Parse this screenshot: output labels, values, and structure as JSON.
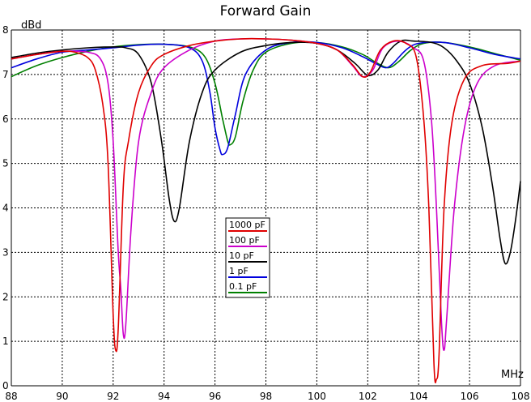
{
  "chart_data": {
    "type": "line",
    "title": "Forward Gain",
    "ylabel": "dBd",
    "xlabel": "MHz",
    "xlim": [
      88,
      108
    ],
    "ylim": [
      0,
      8
    ],
    "xticks": [
      "88",
      "90",
      "92",
      "94",
      "96",
      "98",
      "100",
      "102",
      "104",
      "106",
      "108"
    ],
    "yticks": [
      "0",
      "1",
      "2",
      "3",
      "4",
      "5",
      "6",
      "7",
      "8"
    ],
    "grid": true,
    "legend_placement": "center-left",
    "series": [
      {
        "name": "1000 pF",
        "color": "#e00000",
        "points": [
          [
            88,
            7.35
          ],
          [
            89,
            7.45
          ],
          [
            90,
            7.52
          ],
          [
            90.5,
            7.5
          ],
          [
            91,
            7.38
          ],
          [
            91.3,
            7.1
          ],
          [
            91.6,
            6.3
          ],
          [
            91.8,
            5.0
          ],
          [
            92.0,
            1.6
          ],
          [
            92.1,
            0.8
          ],
          [
            92.2,
            1.3
          ],
          [
            92.4,
            4.5
          ],
          [
            92.6,
            5.5
          ],
          [
            93,
            6.6
          ],
          [
            93.5,
            7.2
          ],
          [
            94,
            7.45
          ],
          [
            95,
            7.65
          ],
          [
            96,
            7.75
          ],
          [
            97,
            7.8
          ],
          [
            98,
            7.8
          ],
          [
            99,
            7.77
          ],
          [
            100,
            7.7
          ],
          [
            100.8,
            7.55
          ],
          [
            101.4,
            7.22
          ],
          [
            101.8,
            6.95
          ],
          [
            102.1,
            7.05
          ],
          [
            102.5,
            7.55
          ],
          [
            103,
            7.75
          ],
          [
            103.5,
            7.7
          ],
          [
            103.9,
            7.4
          ],
          [
            104.2,
            6.0
          ],
          [
            104.4,
            4.0
          ],
          [
            104.6,
            0.5
          ],
          [
            104.7,
            0.15
          ],
          [
            104.8,
            0.7
          ],
          [
            105.0,
            4.0
          ],
          [
            105.3,
            5.9
          ],
          [
            105.8,
            6.9
          ],
          [
            106.5,
            7.2
          ],
          [
            107.5,
            7.25
          ],
          [
            108,
            7.3
          ]
        ]
      },
      {
        "name": "100 pF",
        "color": "#cc00cc",
        "points": [
          [
            88,
            7.35
          ],
          [
            89,
            7.45
          ],
          [
            90,
            7.52
          ],
          [
            91,
            7.5
          ],
          [
            91.5,
            7.35
          ],
          [
            91.8,
            6.8
          ],
          [
            92.0,
            5.5
          ],
          [
            92.2,
            3.0
          ],
          [
            92.3,
            2.2
          ],
          [
            92.4,
            1.15
          ],
          [
            92.5,
            1.4
          ],
          [
            92.7,
            3.5
          ],
          [
            93,
            5.5
          ],
          [
            93.5,
            6.6
          ],
          [
            94,
            7.15
          ],
          [
            95,
            7.55
          ],
          [
            96,
            7.75
          ],
          [
            97,
            7.8
          ],
          [
            98,
            7.8
          ],
          [
            99,
            7.77
          ],
          [
            100,
            7.7
          ],
          [
            100.8,
            7.55
          ],
          [
            101.4,
            7.2
          ],
          [
            101.8,
            6.95
          ],
          [
            102.2,
            7.1
          ],
          [
            102.6,
            7.6
          ],
          [
            103.2,
            7.75
          ],
          [
            103.8,
            7.6
          ],
          [
            104.2,
            7.3
          ],
          [
            104.5,
            6.0
          ],
          [
            104.7,
            4.0
          ],
          [
            104.9,
            1.4
          ],
          [
            105.0,
            0.8
          ],
          [
            105.1,
            1.5
          ],
          [
            105.4,
            4.0
          ],
          [
            105.8,
            5.8
          ],
          [
            106.3,
            6.8
          ],
          [
            107,
            7.2
          ],
          [
            108,
            7.3
          ]
        ]
      },
      {
        "name": "10 pF",
        "color": "#000000",
        "points": [
          [
            88,
            7.38
          ],
          [
            89,
            7.48
          ],
          [
            90,
            7.55
          ],
          [
            91,
            7.6
          ],
          [
            92,
            7.62
          ],
          [
            92.5,
            7.6
          ],
          [
            93,
            7.45
          ],
          [
            93.5,
            6.8
          ],
          [
            93.9,
            5.5
          ],
          [
            94.2,
            4.2
          ],
          [
            94.4,
            3.7
          ],
          [
            94.6,
            4.0
          ],
          [
            95,
            5.5
          ],
          [
            95.5,
            6.6
          ],
          [
            96,
            7.1
          ],
          [
            97,
            7.5
          ],
          [
            98,
            7.65
          ],
          [
            99,
            7.72
          ],
          [
            100,
            7.7
          ],
          [
            100.8,
            7.55
          ],
          [
            101.5,
            7.25
          ],
          [
            102,
            6.98
          ],
          [
            102.4,
            7.1
          ],
          [
            102.8,
            7.5
          ],
          [
            103.3,
            7.75
          ],
          [
            103.8,
            7.75
          ],
          [
            104.5,
            7.72
          ],
          [
            105,
            7.6
          ],
          [
            105.5,
            7.3
          ],
          [
            106,
            6.8
          ],
          [
            106.5,
            5.8
          ],
          [
            106.9,
            4.5
          ],
          [
            107.2,
            3.3
          ],
          [
            107.4,
            2.75
          ],
          [
            107.6,
            3.0
          ],
          [
            107.8,
            3.7
          ],
          [
            108,
            4.6
          ]
        ]
      },
      {
        "name": "1 pF",
        "color": "#0000dd",
        "points": [
          [
            88,
            7.15
          ],
          [
            89,
            7.35
          ],
          [
            90,
            7.5
          ],
          [
            91,
            7.55
          ],
          [
            92,
            7.6
          ],
          [
            93,
            7.66
          ],
          [
            94,
            7.68
          ],
          [
            95,
            7.6
          ],
          [
            95.5,
            7.3
          ],
          [
            95.8,
            6.6
          ],
          [
            96.0,
            5.8
          ],
          [
            96.2,
            5.3
          ],
          [
            96.3,
            5.2
          ],
          [
            96.5,
            5.35
          ],
          [
            96.8,
            6.1
          ],
          [
            97.2,
            7.0
          ],
          [
            98,
            7.55
          ],
          [
            99,
            7.72
          ],
          [
            100,
            7.72
          ],
          [
            101,
            7.6
          ],
          [
            101.8,
            7.4
          ],
          [
            102.3,
            7.25
          ],
          [
            102.7,
            7.15
          ],
          [
            103,
            7.25
          ],
          [
            103.5,
            7.55
          ],
          [
            104,
            7.7
          ],
          [
            105,
            7.72
          ],
          [
            106,
            7.6
          ],
          [
            107,
            7.45
          ],
          [
            108,
            7.35
          ]
        ]
      },
      {
        "name": "0.1 pF",
        "color": "#008000",
        "points": [
          [
            88,
            6.95
          ],
          [
            89,
            7.2
          ],
          [
            90,
            7.38
          ],
          [
            91,
            7.52
          ],
          [
            92,
            7.62
          ],
          [
            93,
            7.67
          ],
          [
            94,
            7.68
          ],
          [
            95,
            7.62
          ],
          [
            95.6,
            7.4
          ],
          [
            96.0,
            6.8
          ],
          [
            96.3,
            6.0
          ],
          [
            96.5,
            5.5
          ],
          [
            96.6,
            5.42
          ],
          [
            96.8,
            5.6
          ],
          [
            97.1,
            6.4
          ],
          [
            97.5,
            7.1
          ],
          [
            98,
            7.5
          ],
          [
            99,
            7.7
          ],
          [
            100,
            7.72
          ],
          [
            101,
            7.62
          ],
          [
            101.8,
            7.45
          ],
          [
            102.3,
            7.28
          ],
          [
            102.8,
            7.15
          ],
          [
            103.2,
            7.28
          ],
          [
            103.7,
            7.55
          ],
          [
            104.2,
            7.7
          ],
          [
            105,
            7.72
          ],
          [
            106,
            7.62
          ],
          [
            107,
            7.47
          ],
          [
            108,
            7.32
          ]
        ]
      }
    ]
  }
}
